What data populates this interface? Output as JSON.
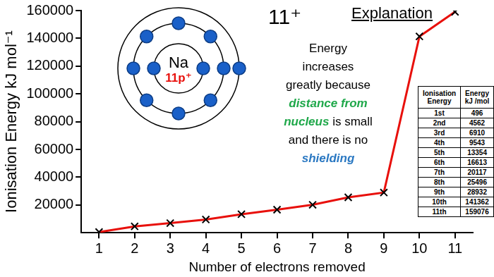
{
  "chart_data": {
    "type": "line",
    "x_label": "Number of electrons removed",
    "y_label": "Ionisation Energy kJ mol⁻¹",
    "categories": [
      "1",
      "2",
      "3",
      "4",
      "5",
      "6",
      "7",
      "8",
      "9",
      "10",
      "11"
    ],
    "values": [
      496,
      4562,
      6910,
      9543,
      13354,
      16613,
      20117,
      25496,
      28932,
      141362,
      159076
    ],
    "color": "#e8100c",
    "marker": "x",
    "ylim": [
      0,
      160000
    ],
    "yticks": [
      20000,
      40000,
      60000,
      80000,
      100000,
      120000,
      140000,
      160000
    ],
    "grid": false
  },
  "heading": "11⁺",
  "atom": {
    "symbol": "Na",
    "nucleus": "11p⁺",
    "shells": [
      2,
      8,
      1
    ]
  },
  "explanation": {
    "title": "Explanation",
    "lines": [
      [
        {
          "text": "Energy"
        }
      ],
      [
        {
          "text": "increases"
        }
      ],
      [
        {
          "text": "greatly because"
        }
      ],
      [
        {
          "text": "distance from",
          "color": "#1fa84a"
        }
      ],
      [
        {
          "text": "nucleus",
          "color": "#1fa84a"
        },
        {
          "text": "is small"
        }
      ],
      [
        {
          "text": "and there is no"
        }
      ],
      [
        {
          "text": "shielding",
          "color": "#2a78c2"
        }
      ]
    ]
  },
  "table": {
    "header": [
      "Ionisation Energy",
      "Energy kJ /mol"
    ],
    "rows": [
      [
        "1st",
        496
      ],
      [
        "2nd",
        4562
      ],
      [
        "3rd",
        6910
      ],
      [
        "4th",
        9543
      ],
      [
        "5th",
        13354
      ],
      [
        "6th",
        16613
      ],
      [
        "7th",
        20117
      ],
      [
        "8th",
        25496
      ],
      [
        "9th",
        28932
      ],
      [
        "10th",
        141362
      ],
      [
        "11th",
        159076
      ]
    ]
  }
}
